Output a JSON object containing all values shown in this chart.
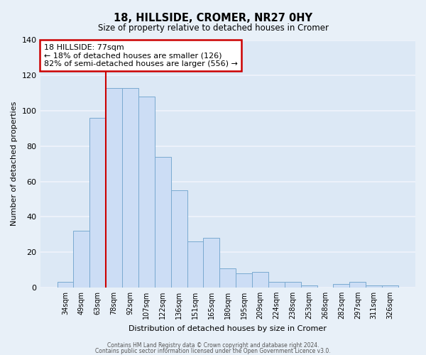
{
  "title": "18, HILLSIDE, CROMER, NR27 0HY",
  "subtitle": "Size of property relative to detached houses in Cromer",
  "xlabel": "Distribution of detached houses by size in Cromer",
  "ylabel": "Number of detached properties",
  "bar_color": "#ccddf5",
  "bar_edge_color": "#7aaad0",
  "background_color": "#dce8f5",
  "fig_background_color": "#e8f0f8",
  "grid_color": "#f0f4fc",
  "categories": [
    "34sqm",
    "49sqm",
    "63sqm",
    "78sqm",
    "92sqm",
    "107sqm",
    "122sqm",
    "136sqm",
    "151sqm",
    "165sqm",
    "180sqm",
    "195sqm",
    "209sqm",
    "224sqm",
    "238sqm",
    "253sqm",
    "268sqm",
    "282sqm",
    "297sqm",
    "311sqm",
    "326sqm"
  ],
  "values": [
    3,
    32,
    96,
    113,
    113,
    108,
    74,
    55,
    26,
    28,
    11,
    8,
    9,
    3,
    3,
    1,
    0,
    2,
    3,
    1,
    1
  ],
  "ylim": [
    0,
    140
  ],
  "yticks": [
    0,
    20,
    40,
    60,
    80,
    100,
    120,
    140
  ],
  "marker_idx": 3,
  "marker_label": "18 HILLSIDE: 77sqm",
  "annotation_line1": "← 18% of detached houses are smaller (126)",
  "annotation_line2": "82% of semi-detached houses are larger (556) →",
  "annotation_box_color": "#ffffff",
  "annotation_box_edge_color": "#cc0000",
  "marker_line_color": "#cc0000",
  "footer1": "Contains HM Land Registry data © Crown copyright and database right 2024.",
  "footer2": "Contains public sector information licensed under the Open Government Licence v3.0."
}
